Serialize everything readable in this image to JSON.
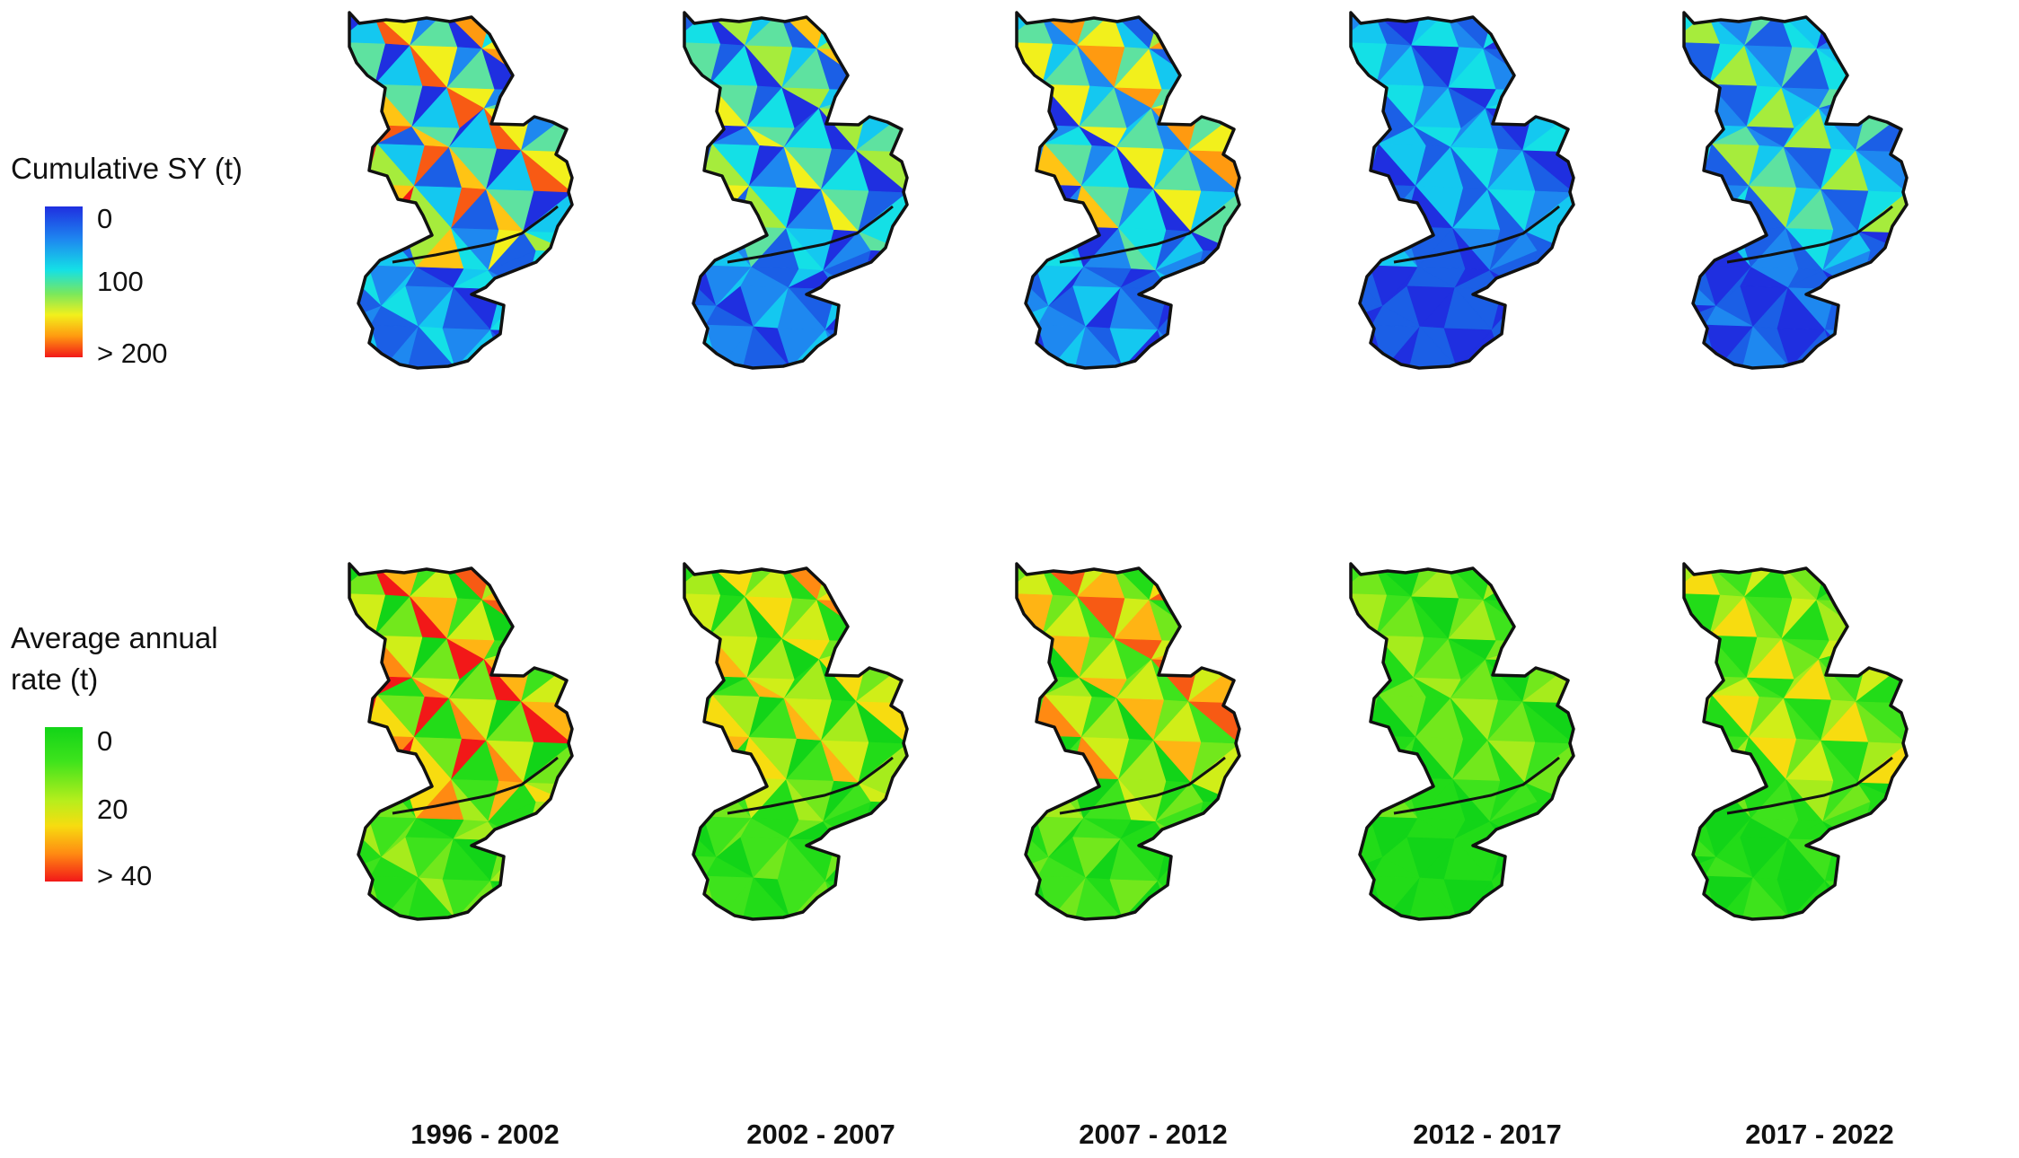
{
  "legends": {
    "sy": {
      "title": "Cumulative SY (t)",
      "ticks": [
        "0",
        "100",
        "> 200"
      ],
      "colors": [
        "#1f2fe0",
        "#1e88f0",
        "#14e0e6",
        "#7ae85c",
        "#f2f01c",
        "#ff9a10",
        "#f21818"
      ]
    },
    "rate": {
      "title": "Average annual rate (t)",
      "ticks": [
        "0",
        "20",
        "> 40"
      ],
      "colors": [
        "#12d418",
        "#3ee31c",
        "#b8ee1c",
        "#f7dc10",
        "#ff8a12",
        "#f21818"
      ]
    }
  },
  "periods": [
    "1996 - 2002",
    "2002 - 2007",
    "2007 - 2012",
    "2012 - 2017",
    "2017 - 2022"
  ],
  "maps": {
    "rows": [
      "cumulative-sy",
      "average-annual-rate"
    ],
    "boundary_color": "#111111"
  }
}
